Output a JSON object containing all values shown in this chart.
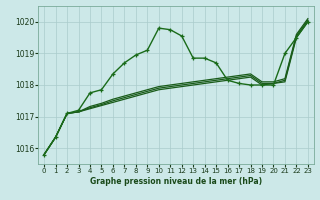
{
  "bg_color": "#cce8e8",
  "grid_color": "#aacccc",
  "xlabel": "Graphe pression niveau de la mer (hPa)",
  "xlim": [
    -0.5,
    23.5
  ],
  "ylim": [
    1015.5,
    1020.5
  ],
  "yticks": [
    1016,
    1017,
    1018,
    1019,
    1020
  ],
  "xticks": [
    0,
    1,
    2,
    3,
    4,
    5,
    6,
    7,
    8,
    9,
    10,
    11,
    12,
    13,
    14,
    15,
    16,
    17,
    18,
    19,
    20,
    21,
    22,
    23
  ],
  "line1": {
    "x": [
      0,
      1,
      2,
      3,
      4,
      5,
      6,
      7,
      8,
      9,
      10,
      11,
      12,
      13,
      14,
      15,
      16,
      17,
      18,
      19,
      20,
      21,
      22,
      23
    ],
    "y": [
      1015.8,
      1016.35,
      1017.1,
      1017.15,
      1017.25,
      1017.35,
      1017.45,
      1017.55,
      1017.65,
      1017.75,
      1017.85,
      1017.9,
      1017.95,
      1018.0,
      1018.05,
      1018.1,
      1018.15,
      1018.2,
      1018.25,
      1018.0,
      1018.05,
      1018.1,
      1019.5,
      1020.0
    ],
    "color": "#1a5c1a",
    "lw": 0.9
  },
  "line2": {
    "x": [
      0,
      1,
      2,
      3,
      4,
      5,
      6,
      7,
      8,
      9,
      10,
      11,
      12,
      13,
      14,
      15,
      16,
      17,
      18,
      19,
      20,
      21,
      22,
      23
    ],
    "y": [
      1015.8,
      1016.35,
      1017.1,
      1017.15,
      1017.28,
      1017.38,
      1017.5,
      1017.6,
      1017.7,
      1017.8,
      1017.9,
      1017.95,
      1018.0,
      1018.05,
      1018.1,
      1018.15,
      1018.2,
      1018.25,
      1018.3,
      1018.05,
      1018.05,
      1018.15,
      1019.55,
      1020.05
    ],
    "color": "#1a5c1a",
    "lw": 0.9
  },
  "line3": {
    "x": [
      0,
      1,
      2,
      3,
      4,
      5,
      6,
      7,
      8,
      9,
      10,
      11,
      12,
      13,
      14,
      15,
      16,
      17,
      18,
      19,
      20,
      21,
      22,
      23
    ],
    "y": [
      1015.8,
      1016.35,
      1017.1,
      1017.15,
      1017.32,
      1017.42,
      1017.55,
      1017.65,
      1017.75,
      1017.85,
      1017.95,
      1018.0,
      1018.05,
      1018.1,
      1018.15,
      1018.2,
      1018.25,
      1018.3,
      1018.35,
      1018.1,
      1018.1,
      1018.2,
      1019.6,
      1020.1
    ],
    "color": "#1a5c1a",
    "lw": 0.9
  },
  "line_zigzag": {
    "x": [
      0,
      1,
      2,
      3,
      4,
      5,
      6,
      7,
      8,
      9,
      10,
      11,
      12,
      13,
      14,
      15,
      16,
      17,
      18,
      19,
      20,
      21,
      22,
      23
    ],
    "y": [
      1015.8,
      1016.35,
      1017.1,
      1017.2,
      1017.75,
      1017.85,
      1018.35,
      1018.7,
      1018.95,
      1019.1,
      1019.8,
      1019.75,
      1019.55,
      1018.85,
      1018.85,
      1018.7,
      1018.15,
      1018.05,
      1018.0,
      1018.0,
      1018.0,
      1019.0,
      1019.5,
      1020.0
    ],
    "color": "#1a6b1a",
    "lw": 1.0
  }
}
